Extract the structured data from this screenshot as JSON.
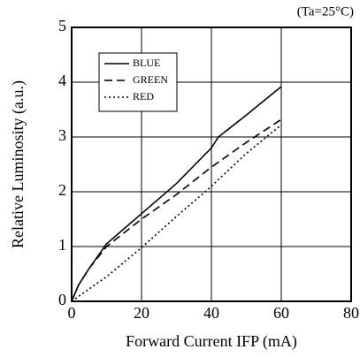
{
  "chart_data": {
    "type": "line",
    "annotation": "(Ta=25°C)",
    "xlabel": "Forward Current  IFP (mA)",
    "ylabel": "Relative Luminosity (a.u.)",
    "xlim": [
      0,
      80
    ],
    "xticks": [
      0,
      20,
      40,
      60,
      80
    ],
    "ylim": [
      0,
      5
    ],
    "yticks": [
      0,
      1,
      2,
      3,
      4,
      5
    ],
    "grid": true,
    "legend": "upper left",
    "series": [
      {
        "name": "BLUE",
        "color": "#000000",
        "dash": "solid",
        "x": [
          0,
          2,
          5,
          10,
          20,
          30,
          40,
          42,
          50,
          60
        ],
        "values": [
          0,
          0.3,
          0.6,
          1.05,
          1.6,
          2.15,
          2.8,
          3.0,
          3.4,
          3.92
        ]
      },
      {
        "name": "GREEN",
        "color": "#000000",
        "dash": "dashed",
        "x": [
          0,
          2,
          5,
          10,
          20,
          30,
          40,
          50,
          60
        ],
        "values": [
          0,
          0.3,
          0.6,
          1.0,
          1.5,
          1.95,
          2.45,
          2.9,
          3.32
        ]
      },
      {
        "name": "RED",
        "color": "#000000",
        "dash": "dotted",
        "x": [
          0,
          10,
          20,
          30,
          40,
          50,
          60
        ],
        "values": [
          0,
          0.45,
          0.98,
          1.55,
          2.1,
          2.7,
          3.22
        ]
      }
    ]
  }
}
